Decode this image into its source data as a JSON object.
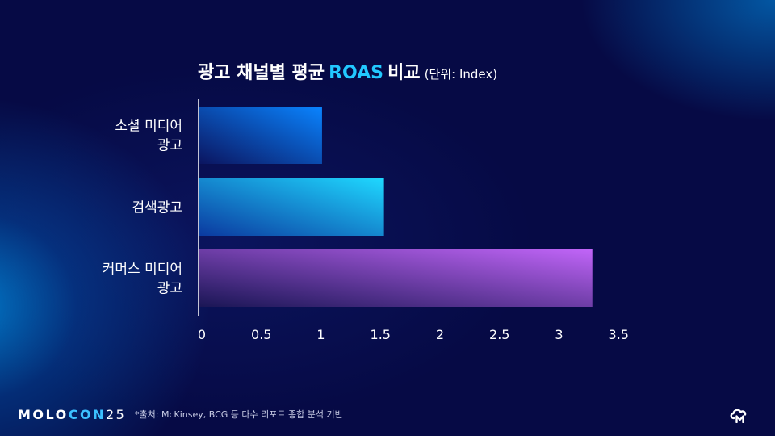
{
  "title": {
    "main": "광고 채널별 평균",
    "accent": "ROAS",
    "tail": "비교",
    "unit": "(단위: Index)"
  },
  "chart_data": {
    "type": "bar",
    "orientation": "horizontal",
    "categories": [
      [
        "소셜 미디어",
        "광고"
      ],
      [
        "검색광고"
      ],
      [
        "커머스 미디어",
        "광고"
      ]
    ],
    "values": [
      1.03,
      1.55,
      3.3
    ],
    "xlim": [
      0,
      3.5
    ],
    "xticks": [
      0,
      0.5,
      1,
      1.5,
      2,
      2.5,
      3,
      3.5
    ],
    "xtick_labels": [
      "0",
      "0.5",
      "1",
      "1.5",
      "2",
      "2.5",
      "3",
      "3.5"
    ],
    "grid": false,
    "legend": "none",
    "bar_gradients": [
      [
        "#0b1560",
        "#0a84ff"
      ],
      [
        "#0b3aa0",
        "#1fd8ff"
      ],
      [
        "#1a1655",
        "#c165f8"
      ]
    ]
  },
  "footer": {
    "logo_a": "MOLO",
    "logo_b": "CON",
    "logo_c": "25",
    "source": "*출처: McKinsey, BCG 등 다수 리포트 종합 분석 기반"
  },
  "icons": {
    "corner": "cloud-m-logo-icon"
  },
  "colors": {
    "background": "#060a45",
    "accent": "#22c8ff"
  }
}
